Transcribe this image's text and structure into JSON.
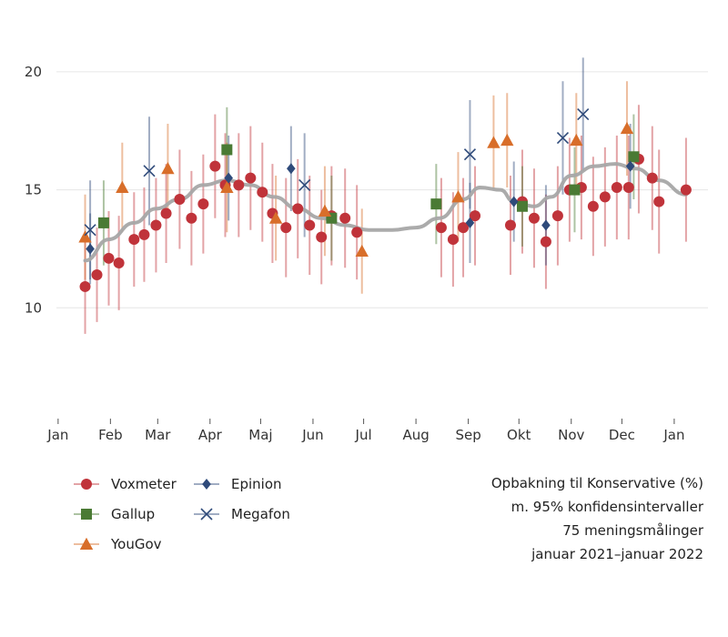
{
  "chart_data": {
    "type": "scatter",
    "title_lines": [
      "Opbakning til Konservative (%)",
      "m. 95% konfidensintervaller",
      "75 meningsmålinger",
      "januar 2021–januar 2022"
    ],
    "ylim": [
      5.5,
      21.5
    ],
    "yticks": [
      10,
      15,
      20
    ],
    "xlim": [
      -1,
      385
    ],
    "xticks": [
      {
        "day": 0,
        "label": "Jan"
      },
      {
        "day": 31,
        "label": "Feb"
      },
      {
        "day": 59,
        "label": "Mar"
      },
      {
        "day": 90,
        "label": "Apr"
      },
      {
        "day": 120,
        "label": "Maj"
      },
      {
        "day": 151,
        "label": "Jun"
      },
      {
        "day": 181,
        "label": "Jul"
      },
      {
        "day": 212,
        "label": "Aug"
      },
      {
        "day": 243,
        "label": "Sep"
      },
      {
        "day": 273,
        "label": "Okt"
      },
      {
        "day": 304,
        "label": "Nov"
      },
      {
        "day": 334,
        "label": "Dec"
      },
      {
        "day": 365,
        "label": "Jan"
      }
    ],
    "grid": true,
    "legend_position": "bottom-left",
    "series": [
      {
        "name": "Voxmeter",
        "color": "#c0333a",
        "marker": "circle",
        "points": [
          [
            16,
            10.9,
            2.0
          ],
          [
            23,
            11.4,
            2.0
          ],
          [
            30,
            12.1,
            2.0
          ],
          [
            36,
            11.9,
            2.0
          ],
          [
            45,
            12.9,
            2.0
          ],
          [
            51,
            13.1,
            2.0
          ],
          [
            58,
            13.5,
            2.0
          ],
          [
            64,
            14.0,
            2.1
          ],
          [
            72,
            14.6,
            2.1
          ],
          [
            79,
            13.8,
            2.0
          ],
          [
            86,
            14.4,
            2.1
          ],
          [
            93,
            16.0,
            2.2
          ],
          [
            99,
            15.2,
            2.2
          ],
          [
            107,
            15.2,
            2.2
          ],
          [
            114,
            15.5,
            2.2
          ],
          [
            121,
            14.9,
            2.1
          ],
          [
            127,
            14.0,
            2.1
          ],
          [
            135,
            13.4,
            2.1
          ],
          [
            142,
            14.2,
            2.1
          ],
          [
            149,
            13.5,
            2.1
          ],
          [
            156,
            13.0,
            2.0
          ],
          [
            162,
            13.9,
            2.1
          ],
          [
            170,
            13.8,
            2.1
          ],
          [
            177,
            13.2,
            2.0
          ],
          [
            227,
            13.4,
            2.1
          ],
          [
            234,
            12.9,
            2.0
          ],
          [
            240,
            13.4,
            2.1
          ],
          [
            247,
            13.9,
            2.1
          ],
          [
            268,
            13.5,
            2.1
          ],
          [
            275,
            14.5,
            2.2
          ],
          [
            282,
            13.8,
            2.1
          ],
          [
            289,
            12.8,
            2.0
          ],
          [
            296,
            13.9,
            2.1
          ],
          [
            303,
            15.0,
            2.2
          ],
          [
            310,
            15.1,
            2.2
          ],
          [
            317,
            14.3,
            2.1
          ],
          [
            324,
            14.7,
            2.1
          ],
          [
            331,
            15.1,
            2.2
          ],
          [
            338,
            15.1,
            2.2
          ],
          [
            344,
            16.3,
            2.3
          ],
          [
            352,
            15.5,
            2.2
          ],
          [
            356,
            14.5,
            2.2
          ],
          [
            372,
            15.0,
            2.2
          ]
        ]
      },
      {
        "name": "Gallup",
        "color": "#4a7a34",
        "marker": "square",
        "points": [
          [
            27,
            13.6,
            1.8
          ],
          [
            100,
            16.7,
            1.8
          ],
          [
            162,
            13.8,
            1.8
          ],
          [
            224,
            14.4,
            1.7
          ],
          [
            275,
            14.3,
            1.7
          ],
          [
            306,
            15.0,
            1.8
          ],
          [
            341,
            16.4,
            1.8
          ]
        ]
      },
      {
        "name": "YouGov",
        "color": "#d86e2a",
        "marker": "triangle",
        "points": [
          [
            16,
            13.0,
            1.8
          ],
          [
            38,
            15.1,
            1.9
          ],
          [
            65,
            15.9,
            1.9
          ],
          [
            100,
            15.1,
            1.9
          ],
          [
            129,
            13.8,
            1.8
          ],
          [
            158,
            14.1,
            1.9
          ],
          [
            180,
            12.4,
            1.8
          ],
          [
            237,
            14.7,
            1.9
          ],
          [
            258,
            17.0,
            2.0
          ],
          [
            266,
            17.1,
            2.0
          ],
          [
            307,
            17.1,
            2.0
          ],
          [
            337,
            17.6,
            2.0
          ]
        ]
      },
      {
        "name": "Epinion",
        "color": "#2e4a7a",
        "marker": "diamond",
        "points": [
          [
            19,
            12.5,
            1.5
          ],
          [
            101,
            15.5,
            1.8
          ],
          [
            138,
            15.9,
            1.8
          ],
          [
            244,
            13.6,
            1.7
          ],
          [
            270,
            14.5,
            1.7
          ],
          [
            289,
            13.5,
            1.7
          ],
          [
            339,
            16.0,
            1.8
          ]
        ]
      },
      {
        "name": "Megafon",
        "color": "#2e4a7a",
        "marker": "cross",
        "points": [
          [
            19,
            13.3,
            2.1
          ],
          [
            54,
            15.8,
            2.3
          ],
          [
            146,
            15.2,
            2.2
          ],
          [
            244,
            16.5,
            2.3
          ],
          [
            299,
            17.2,
            2.4
          ],
          [
            311,
            18.2,
            2.4
          ]
        ]
      }
    ],
    "trend": {
      "color": "#a6a6a6",
      "points": [
        [
          16,
          12.0
        ],
        [
          30,
          12.9
        ],
        [
          45,
          13.6
        ],
        [
          58,
          14.2
        ],
        [
          72,
          14.6
        ],
        [
          86,
          15.2
        ],
        [
          100,
          15.4
        ],
        [
          114,
          15.2
        ],
        [
          128,
          14.7
        ],
        [
          142,
          14.2
        ],
        [
          156,
          13.8
        ],
        [
          170,
          13.5
        ],
        [
          184,
          13.3
        ],
        [
          198,
          13.3
        ],
        [
          212,
          13.4
        ],
        [
          226,
          13.8
        ],
        [
          240,
          14.6
        ],
        [
          250,
          15.1
        ],
        [
          262,
          15.0
        ],
        [
          270,
          14.5
        ],
        [
          282,
          14.3
        ],
        [
          292,
          14.7
        ],
        [
          304,
          15.6
        ],
        [
          318,
          16.0
        ],
        [
          330,
          16.1
        ],
        [
          342,
          15.9
        ],
        [
          356,
          15.4
        ],
        [
          372,
          14.8
        ]
      ]
    }
  }
}
